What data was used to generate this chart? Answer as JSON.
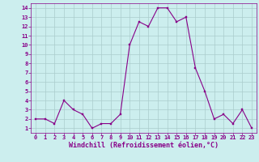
{
  "x": [
    0,
    1,
    2,
    3,
    4,
    5,
    6,
    7,
    8,
    9,
    10,
    11,
    12,
    13,
    14,
    15,
    16,
    17,
    18,
    19,
    20,
    21,
    22,
    23
  ],
  "y": [
    2,
    2,
    1.5,
    4,
    3,
    2.5,
    1,
    1.5,
    1.5,
    2.5,
    10,
    12.5,
    12,
    14,
    14,
    12.5,
    13,
    7.5,
    5,
    2,
    2.5,
    1.5,
    3,
    1
  ],
  "line_color": "#880088",
  "marker_color": "#880088",
  "bg_color": "#cceeee",
  "grid_color": "#aacccc",
  "xlabel": "Windchill (Refroidissement éolien,°C)",
  "xlabel_color": "#880088",
  "xlim": [
    -0.5,
    23.5
  ],
  "ylim": [
    0.5,
    14.5
  ],
  "xticks": [
    0,
    1,
    2,
    3,
    4,
    5,
    6,
    7,
    8,
    9,
    10,
    11,
    12,
    13,
    14,
    15,
    16,
    17,
    18,
    19,
    20,
    21,
    22,
    23
  ],
  "yticks": [
    1,
    2,
    3,
    4,
    5,
    6,
    7,
    8,
    9,
    10,
    11,
    12,
    13,
    14
  ],
  "tick_color": "#880088",
  "tick_fontsize": 5.0,
  "xlabel_fontsize": 6.0,
  "linewidth": 0.8,
  "markersize": 2.0
}
